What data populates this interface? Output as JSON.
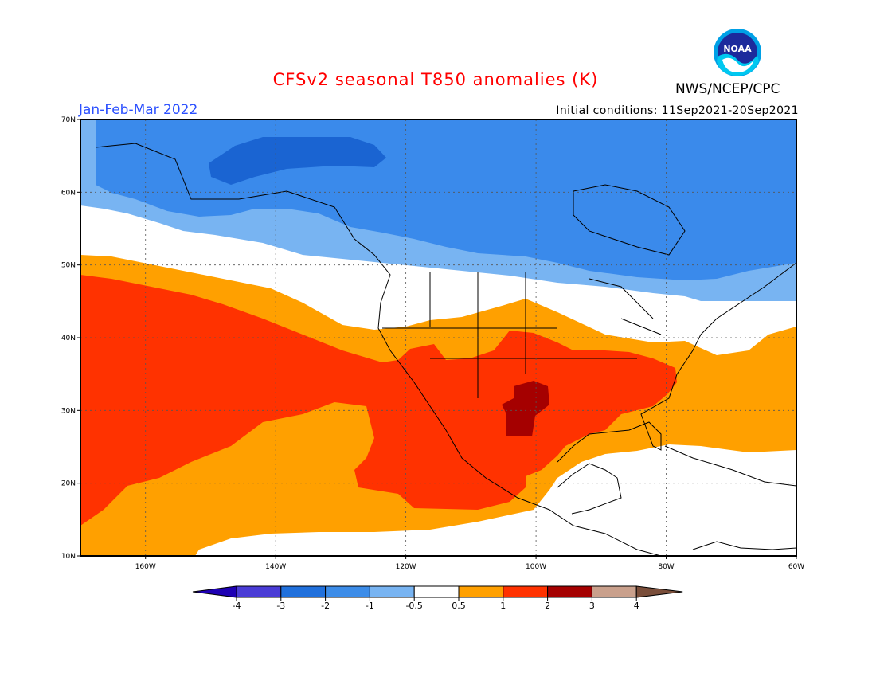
{
  "header": {
    "title": "CFSv2 seasonal T850 anomalies (K)",
    "period": "Jan-Feb-Mar 2022",
    "initial_conditions": "Initial conditions: 11Sep2021-20Sep2021",
    "agency": "NWS/NCEP/CPC",
    "logo": {
      "text": "NOAA",
      "icon": "noaa-logo-icon"
    }
  },
  "map": {
    "lat_labels": [
      "70N",
      "60N",
      "50N",
      "40N",
      "30N",
      "20N",
      "10N"
    ],
    "lon_labels": [
      "160W",
      "140W",
      "120W",
      "100W",
      "80W",
      "60W"
    ],
    "lat_range": [
      10,
      70
    ],
    "lon_range": [
      -170,
      -60
    ],
    "grid": "dotted",
    "colors": {
      "m3": "#1a64d2",
      "m2": "#3a8aeb",
      "m1": "#78b4f2",
      "zero": "#ffffff",
      "p05": "#ffa000",
      "p1": "#ff3200",
      "p2": "#a50000"
    }
  },
  "colorbar": {
    "labels": [
      "-4",
      "-3",
      "-2",
      "-1",
      "-0.5",
      "0.5",
      "1",
      "2",
      "3",
      "4"
    ],
    "colors": [
      "#1e00b4",
      "#4a3cd6",
      "#2070dc",
      "#3c8ce8",
      "#78b4f2",
      "#ffffff",
      "#ffa000",
      "#ff3200",
      "#a50000",
      "#c9a08c",
      "#7a4e3a"
    ]
  }
}
